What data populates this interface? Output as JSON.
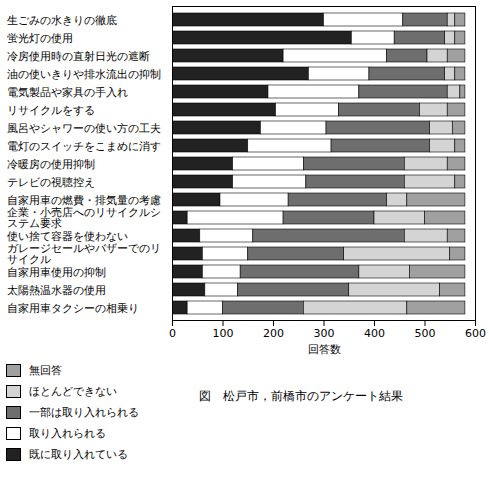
{
  "chart_data": {
    "type": "bar",
    "orientation": "horizontal",
    "stacked": true,
    "title": "図　松戸市，前橋市のアンケート結果",
    "x_label": "回答数",
    "xlim": [
      0,
      600
    ],
    "xticks": [
      0,
      100,
      200,
      300,
      400,
      500,
      600
    ],
    "legend": "bottom-left",
    "categories": [
      "生ごみの水きりの徹底",
      "蛍光灯の使用",
      "冷房使用時の直射日光の遮断",
      "油の使いきりや排水流出の抑制",
      "電気製品や家具の手入れ",
      "リサイクルをする",
      "風呂やシャワーの使い方の工夫",
      "電灯のスイッチをこまめに消す",
      "冷暖房の使用抑制",
      "テレビの視聴控え",
      "自家用車の燃費・排気量の考慮",
      "企業・小売店へのリサイクルシステム要求",
      "使い捨て容器を使わない",
      "ガレージセールやバザーでのリサイクル",
      "自家用車使用の抑制",
      "太陽熱温水器の使用",
      "自家用車タクシーの相乗り"
    ],
    "series": [
      {
        "name": "既に取り入れている",
        "color": "#222222",
        "values": [
          300,
          355,
          220,
          270,
          190,
          205,
          175,
          150,
          120,
          120,
          95,
          30,
          55,
          60,
          60,
          65,
          30
        ]
      },
      {
        "name": "取り入れられる",
        "color": "#ffffff",
        "values": [
          157,
          85,
          205,
          120,
          180,
          125,
          130,
          165,
          140,
          145,
          135,
          190,
          105,
          90,
          75,
          65,
          70
        ]
      },
      {
        "name": "一部は取り入れられる",
        "color": "#6e6e6e",
        "values": [
          88,
          100,
          80,
          150,
          175,
          160,
          205,
          195,
          200,
          195,
          195,
          180,
          300,
          190,
          235,
          220,
          160
        ]
      },
      {
        "name": "ほとんどできない",
        "color": "#d4d4d4",
        "values": [
          15,
          20,
          40,
          20,
          25,
          55,
          45,
          50,
          85,
          100,
          40,
          100,
          85,
          210,
          100,
          180,
          205
        ]
      },
      {
        "name": "無回答",
        "color": "#a0a0a0",
        "values": [
          20,
          20,
          35,
          20,
          10,
          35,
          25,
          20,
          35,
          20,
          115,
          80,
          35,
          30,
          110,
          50,
          115
        ]
      }
    ]
  }
}
